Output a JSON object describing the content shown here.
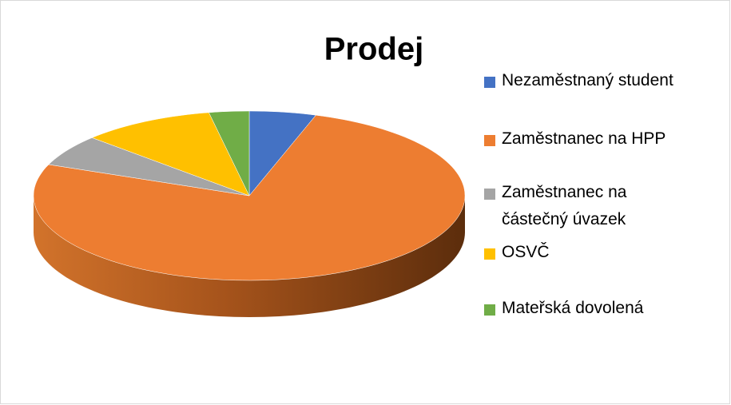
{
  "chart_data": {
    "type": "pie3d",
    "title": "Prodej",
    "categories": [
      "Nezaměstnaný student",
      "Zaměstnanec na HPP",
      "Zaměstnanec na částečný úvazek",
      "OSVČ",
      "Mateřská dovolená"
    ],
    "values": [
      5,
      76,
      6,
      10,
      3
    ],
    "colors": [
      "#4472c4",
      "#ed7d31",
      "#a5a5a5",
      "#ffc000",
      "#70ad47"
    ],
    "legend": "right"
  }
}
